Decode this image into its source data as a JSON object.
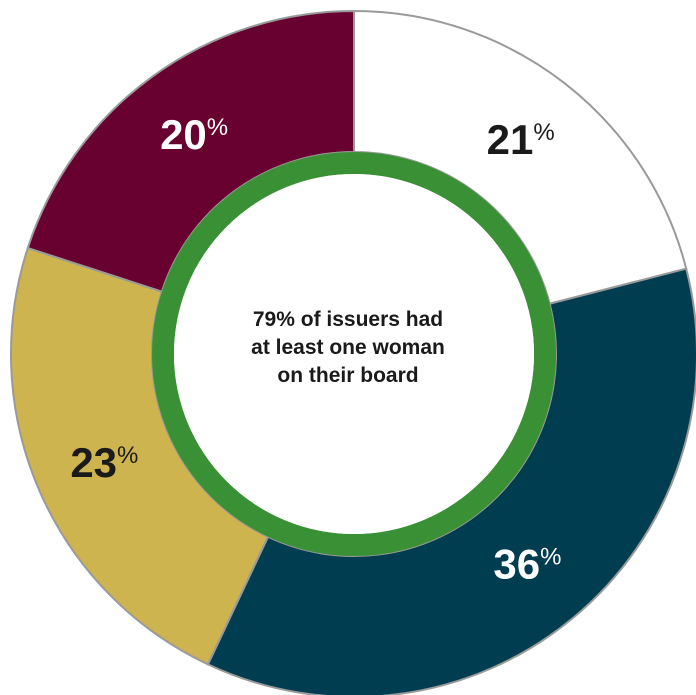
{
  "chart_data": {
    "type": "pie",
    "categories": [
      "",
      "",
      "",
      ""
    ],
    "values": [
      21,
      36,
      23,
      20
    ],
    "value_labels": [
      "21",
      "36",
      "23",
      "20"
    ],
    "unit": "%",
    "slice_colors": [
      "#ffffff",
      "#003d50",
      "#cdb44f",
      "#680030"
    ],
    "label_colors": [
      "#1a1a1a",
      "#ffffff",
      "#1a1a1a",
      "#ffffff"
    ],
    "inner_ring": {
      "value": 79,
      "color": "#3a9135"
    },
    "center_text": [
      "79% of issuers had",
      "at least one woman",
      "on their board"
    ]
  }
}
